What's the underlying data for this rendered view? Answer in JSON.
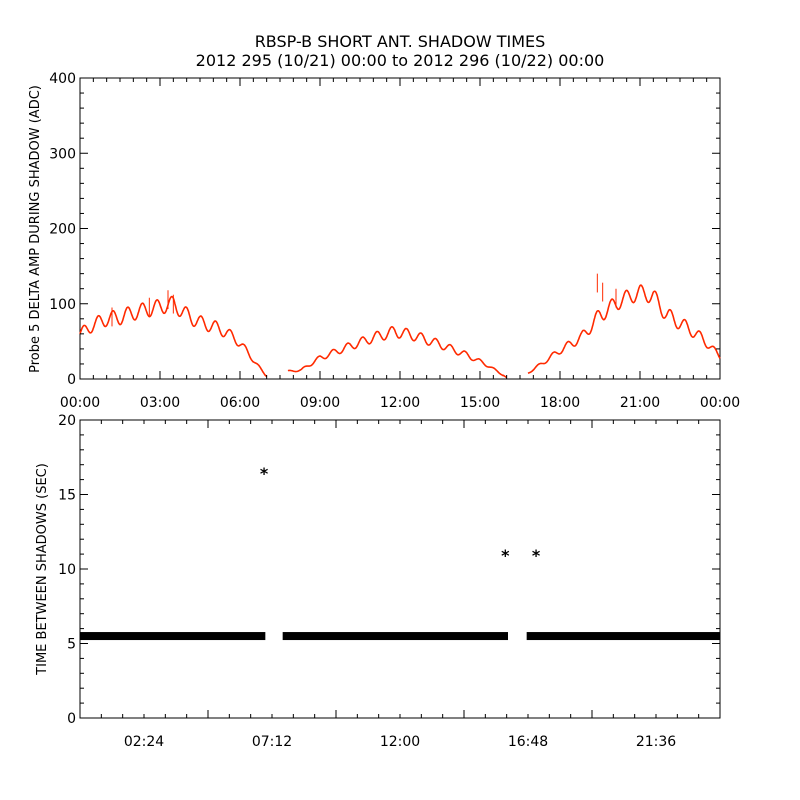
{
  "title": "RBSP-B SHORT ANT. SHADOW TIMES",
  "subtitle": "2012 295 (10/21) 00:00 to 2012 296 (10/22) 00:00",
  "colors": {
    "trace": "#ff2a00",
    "axes": "#000000",
    "markers": "#000000"
  },
  "chart_data": [
    {
      "type": "scatter",
      "ylabel": "Probe 5 DELTA AMP DURING SHADOW (ADC)",
      "xlabel": "",
      "xlim": [
        "00:00",
        "24:00"
      ],
      "ylim": [
        0,
        400
      ],
      "x_tick_labels": [
        "00:00",
        "03:00",
        "06:00",
        "09:00",
        "12:00",
        "15:00",
        "18:00",
        "21:00",
        "00:00"
      ],
      "y_tick_labels": [
        "0",
        "100",
        "200",
        "300",
        "400"
      ],
      "series": [
        {
          "color": "#ff2a00",
          "x_hours": [
            0.0,
            0.5,
            1.0,
            1.5,
            2.0,
            2.5,
            3.0,
            3.5,
            4.0,
            4.5,
            5.0,
            5.5,
            6.0,
            6.4,
            6.8,
            7.0,
            7.8,
            8.3,
            9.0,
            10.0,
            11.0,
            11.8,
            12.5,
            13.5,
            14.5,
            15.3,
            16.0,
            16.8,
            17.3,
            18.0,
            18.8,
            19.5,
            20.3,
            21.0,
            21.5,
            22.0,
            22.7,
            23.3,
            24.0
          ],
          "y": [
            60,
            72,
            80,
            82,
            88,
            92,
            96,
            100,
            85,
            75,
            70,
            62,
            48,
            30,
            12,
            3,
            10,
            12,
            28,
            42,
            55,
            63,
            58,
            46,
            32,
            18,
            2,
            8,
            20,
            38,
            55,
            85,
            105,
            115,
            110,
            85,
            70,
            55,
            30
          ]
        }
      ]
    },
    {
      "type": "scatter",
      "ylabel": "TIME BETWEEN SHADOWS (SEC)",
      "xlabel": "",
      "xlim": [
        "00:00",
        "24:00"
      ],
      "ylim": [
        0,
        20
      ],
      "x_tick_labels": [
        "02:24",
        "07:12",
        "12:00",
        "16:48",
        "21:36"
      ],
      "y_tick_labels": [
        "0",
        "5",
        "10",
        "15",
        "20"
      ],
      "marker": "*",
      "band_value": 5.5,
      "band_segments_hours": [
        [
          0.0,
          6.95
        ],
        [
          7.6,
          16.05
        ],
        [
          16.75,
          24.0
        ]
      ],
      "outliers": [
        {
          "x_hour": 6.9,
          "y": 16.5
        },
        {
          "x_hour": 15.95,
          "y": 11.0
        },
        {
          "x_hour": 17.1,
          "y": 11.0
        }
      ]
    }
  ]
}
